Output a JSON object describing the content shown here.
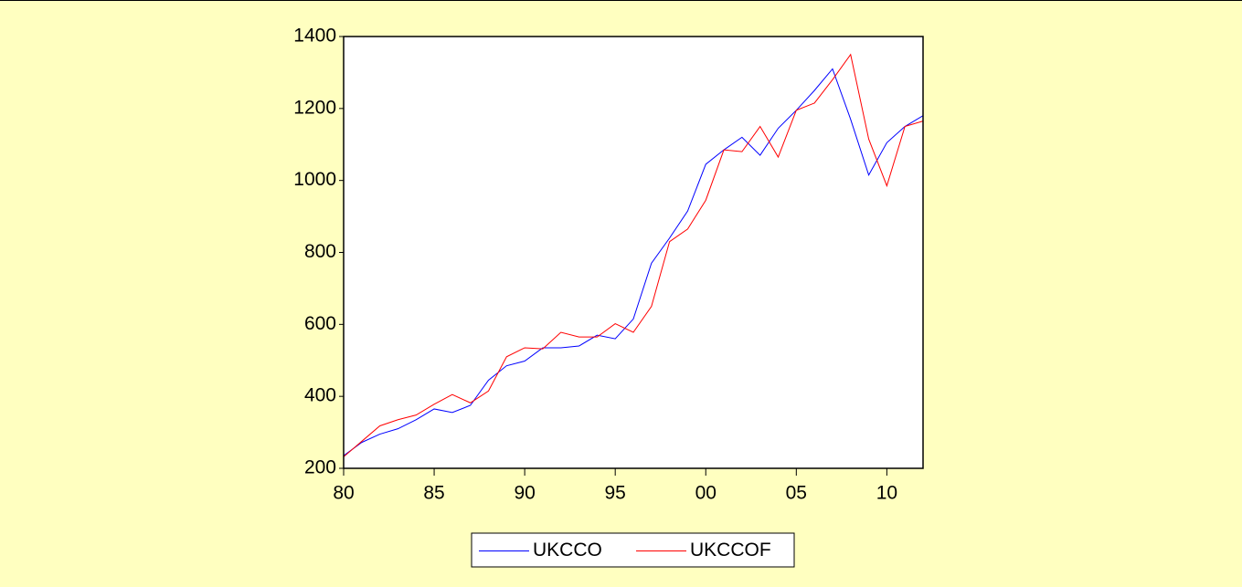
{
  "chart_data": {
    "type": "line",
    "x": [
      1980,
      1981,
      1982,
      1983,
      1984,
      1985,
      1986,
      1987,
      1988,
      1989,
      1990,
      1991,
      1992,
      1993,
      1994,
      1995,
      1996,
      1997,
      1998,
      1999,
      2000,
      2001,
      2002,
      2003,
      2004,
      2005,
      2006,
      2007,
      2008,
      2009,
      2010,
      2011,
      2012
    ],
    "series": [
      {
        "name": "UKCCO",
        "color": "#0000ff",
        "values": [
          235,
          272,
          295,
          310,
          335,
          365,
          355,
          375,
          445,
          485,
          498,
          535,
          535,
          540,
          570,
          560,
          615,
          770,
          840,
          915,
          1045,
          1085,
          1120,
          1070,
          1145,
          1195,
          1250,
          1310,
          1170,
          1015,
          1105,
          1150,
          1180
        ]
      },
      {
        "name": "UKCCOF",
        "color": "#ff0000",
        "values": [
          232,
          275,
          318,
          335,
          348,
          378,
          405,
          382,
          415,
          510,
          535,
          532,
          578,
          565,
          565,
          602,
          578,
          650,
          830,
          865,
          945,
          1085,
          1080,
          1150,
          1065,
          1195,
          1215,
          1280,
          1350,
          1115,
          985,
          1150,
          1165
        ]
      }
    ],
    "xlim": [
      1980,
      2012
    ],
    "xticks": [
      {
        "value": 1980,
        "label": "80"
      },
      {
        "value": 1985,
        "label": "85"
      },
      {
        "value": 1990,
        "label": "90"
      },
      {
        "value": 1995,
        "label": "95"
      },
      {
        "value": 2000,
        "label": "00"
      },
      {
        "value": 2005,
        "label": "05"
      },
      {
        "value": 2010,
        "label": "10"
      }
    ],
    "ylim": [
      200,
      1400
    ],
    "yticks": [
      200,
      400,
      600,
      800,
      1000,
      1200,
      1400
    ],
    "grid": false,
    "legend": "bottom"
  }
}
